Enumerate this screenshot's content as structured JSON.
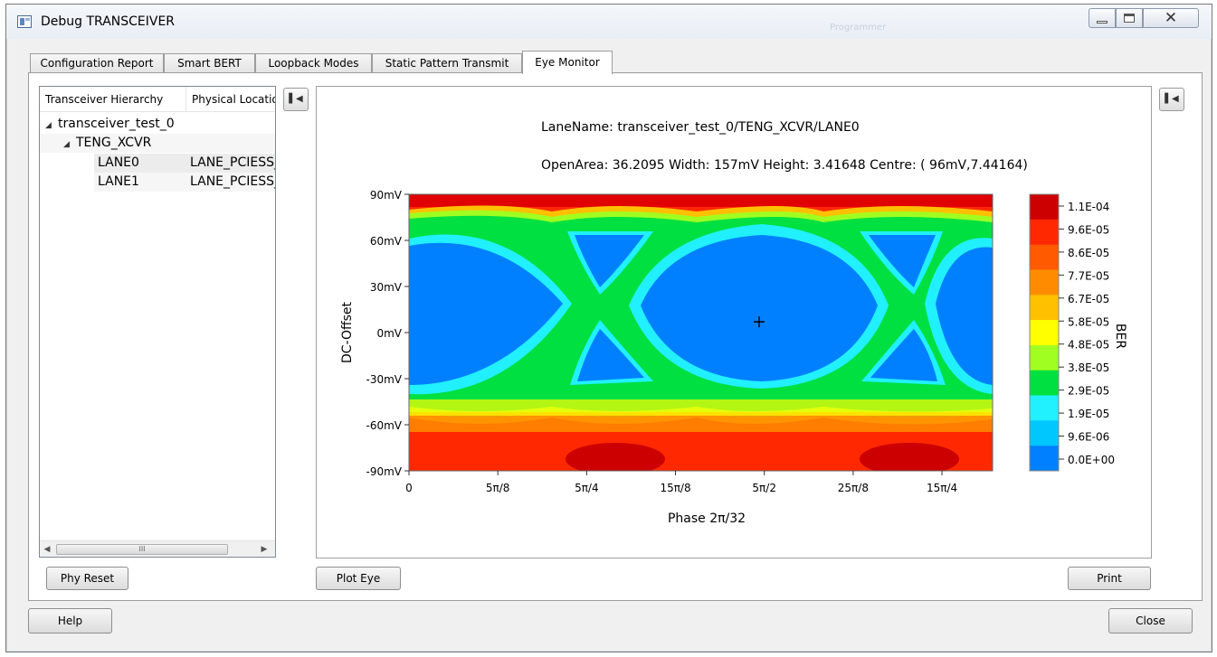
{
  "window": {
    "title": "Debug TRANSCEIVER",
    "title_faint": "Programmer"
  },
  "tabs": [
    {
      "label": "Configuration Report"
    },
    {
      "label": "Smart BERT"
    },
    {
      "label": "Loopback Modes"
    },
    {
      "label": "Static Pattern Transmit"
    },
    {
      "label": "Eye Monitor"
    }
  ],
  "tree": {
    "headers": [
      "Transceiver Hierarchy",
      "Physical Locatio"
    ],
    "root": "transceiver_test_0",
    "group": "TENG_XCVR",
    "lanes": [
      {
        "name": "LANE0",
        "location": "LANE_PCIESS_"
      },
      {
        "name": "LANE1",
        "location": "LANE_PCIESS_"
      }
    ],
    "scroll_thumb": "III"
  },
  "plot": {
    "lane_line": "LaneName: transceiver_test_0/TENG_XCVR/LANE0",
    "stats_line": "OpenArea: 36.2095  Width: 157mV  Height: 3.41648  Centre: ( 96mV,7.44164)",
    "colors": [
      "#0080ff",
      "#00c8ff",
      "#20f0ff",
      "#00e040",
      "#a0ff20",
      "#ffff00",
      "#ffc000",
      "#ff8c00",
      "#ff5a00",
      "#ff2800",
      "#cc0000"
    ]
  },
  "chart_data": {
    "type": "heatmap",
    "title": "",
    "xlabel": "Phase 2π/32",
    "ylabel": "DC-Offset",
    "colorbar_label": "BER",
    "x_ticks": [
      "0",
      "5π/8",
      "5π/4",
      "15π/8",
      "5π/2",
      "25π/8",
      "15π/4"
    ],
    "x_tick_values": [
      0,
      1.9635,
      3.927,
      5.8905,
      7.854,
      9.8175,
      11.781
    ],
    "xlim": [
      0,
      12.9
    ],
    "y_ticks": [
      "90mV",
      "60mV",
      "30mV",
      "0mV",
      "-30mV",
      "-60mV",
      "-90mV"
    ],
    "y_tick_values": [
      90,
      60,
      30,
      0,
      -30,
      -60,
      -90
    ],
    "ylim": [
      -90,
      90
    ],
    "colorbar_ticks": [
      "1.1E-04",
      "9.6E-05",
      "8.6E-05",
      "7.7E-05",
      "6.7E-05",
      "5.8E-05",
      "4.8E-05",
      "3.8E-05",
      "2.9E-05",
      "1.9E-05",
      "9.6E-06",
      "0.0E+00"
    ],
    "eye_centre": {
      "x": 7.74,
      "y": 7
    }
  },
  "buttons": {
    "phy_reset": "Phy Reset",
    "plot_eye": "Plot Eye",
    "print": "Print",
    "help": "Help",
    "close": "Close",
    "collapse": "▌◀"
  }
}
